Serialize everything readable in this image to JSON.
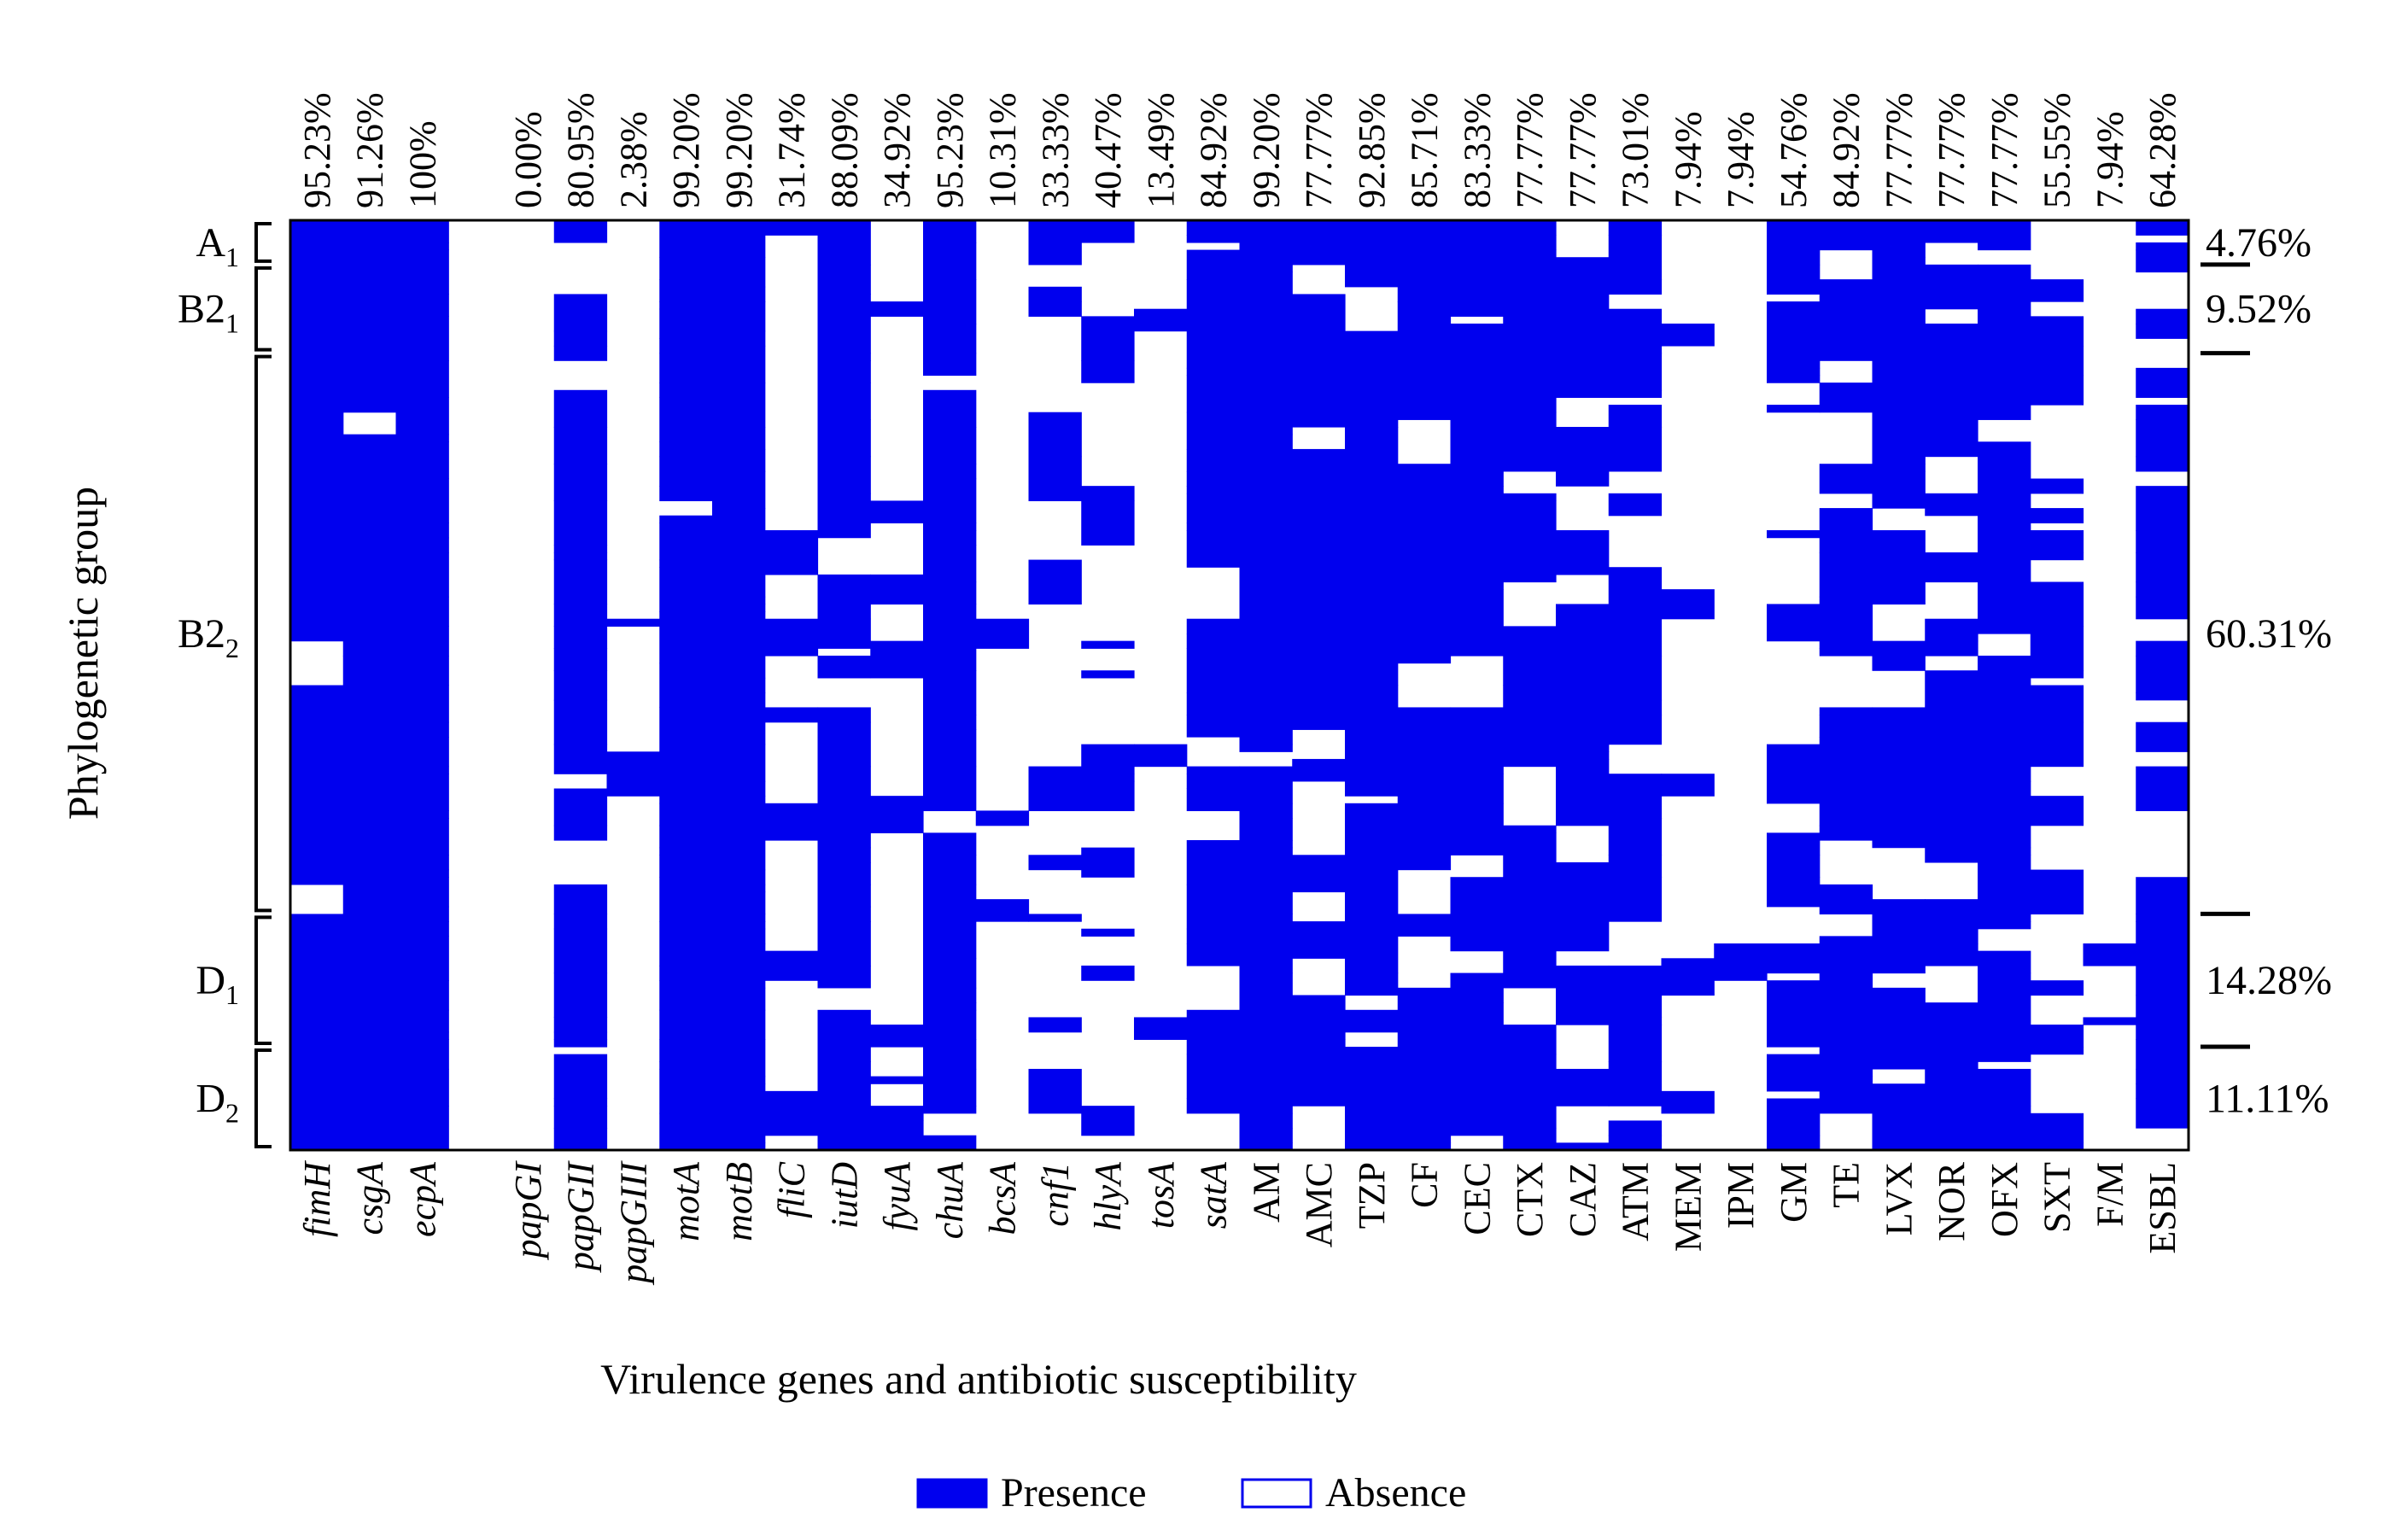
{
  "chart_data": {
    "type": "heatmap",
    "title": "",
    "xlabel": "Virulence genes and antibiotic susceptibility",
    "ylabel": "Phylogenetic group",
    "colors": {
      "presence": "#0000ee",
      "absence": "#ffffff",
      "text": "#000000"
    },
    "legend": {
      "position": "bottom-center",
      "items": [
        {
          "label": "Presence",
          "filled": true
        },
        {
          "label": "Absence",
          "filled": false
        }
      ]
    },
    "columns": [
      {
        "label": "fimH",
        "italic": true,
        "percent": "95.23%",
        "value": 95.23
      },
      {
        "label": "csgA",
        "italic": true,
        "percent": "91.26%",
        "value": 91.26
      },
      {
        "label": "ecpA",
        "italic": true,
        "percent": "100%",
        "value": 100
      },
      {
        "label": "",
        "italic": false,
        "percent": "",
        "value": null
      },
      {
        "label": "papGI",
        "italic": true,
        "percent": "0.00%",
        "value": 0
      },
      {
        "label": "papGII",
        "italic": true,
        "percent": "80.95%",
        "value": 80.95
      },
      {
        "label": "papGIII",
        "italic": true,
        "percent": "2.38%",
        "value": 2.38
      },
      {
        "label": "motA",
        "italic": true,
        "percent": "99.20%",
        "value": 99.2
      },
      {
        "label": "motB",
        "italic": true,
        "percent": "99.20%",
        "value": 99.2
      },
      {
        "label": "fliC",
        "italic": true,
        "percent": "31.74%",
        "value": 31.74
      },
      {
        "label": "iutD",
        "italic": true,
        "percent": "88.09%",
        "value": 88.09
      },
      {
        "label": "fyuA",
        "italic": true,
        "percent": "34.92%",
        "value": 34.92
      },
      {
        "label": "chuA",
        "italic": true,
        "percent": "95.23%",
        "value": 95.23
      },
      {
        "label": "bcsA",
        "italic": true,
        "percent": "10.31%",
        "value": 10.31
      },
      {
        "label": "cnf1",
        "italic": true,
        "percent": "33.33%",
        "value": 33.33
      },
      {
        "label": "hlyA",
        "italic": true,
        "percent": "40.47%",
        "value": 40.47
      },
      {
        "label": "tosA",
        "italic": true,
        "percent": "13.49%",
        "value": 13.49
      },
      {
        "label": "satA",
        "italic": true,
        "percent": "84.92%",
        "value": 84.92
      },
      {
        "label": "AM",
        "italic": false,
        "percent": "99.20%",
        "value": 99.2
      },
      {
        "label": "AMC",
        "italic": false,
        "percent": "77.77%",
        "value": 77.77
      },
      {
        "label": "TZP",
        "italic": false,
        "percent": "92.85%",
        "value": 92.85
      },
      {
        "label": "CF",
        "italic": false,
        "percent": "85.71%",
        "value": 85.71
      },
      {
        "label": "CEC",
        "italic": false,
        "percent": "83.33%",
        "value": 83.33
      },
      {
        "label": "CTX",
        "italic": false,
        "percent": "77.77%",
        "value": 77.77
      },
      {
        "label": "CAZ",
        "italic": false,
        "percent": "77.77%",
        "value": 77.77
      },
      {
        "label": "ATM",
        "italic": false,
        "percent": "73.01%",
        "value": 73.01
      },
      {
        "label": "MEM",
        "italic": false,
        "percent": "7.94%",
        "value": 7.94
      },
      {
        "label": "IPM",
        "italic": false,
        "percent": "7.94%",
        "value": 7.94
      },
      {
        "label": "GM",
        "italic": false,
        "percent": "54.76%",
        "value": 54.76
      },
      {
        "label": "TE",
        "italic": false,
        "percent": "84.92%",
        "value": 84.92
      },
      {
        "label": "LVX",
        "italic": false,
        "percent": "77.77%",
        "value": 77.77
      },
      {
        "label": "NOR",
        "italic": false,
        "percent": "77.77%",
        "value": 77.77
      },
      {
        "label": "OFX",
        "italic": false,
        "percent": "77.77%",
        "value": 77.77
      },
      {
        "label": "SXT",
        "italic": false,
        "percent": "55.55%",
        "value": 55.55
      },
      {
        "label": "F/M",
        "italic": false,
        "percent": "7.94%",
        "value": 7.94
      },
      {
        "label": "ESBL",
        "italic": false,
        "percent": "64.28%",
        "value": 64.28
      }
    ],
    "groups": [
      {
        "label": "A",
        "sub": "1",
        "percent": "4.76%",
        "value": 4.76
      },
      {
        "label": "B2",
        "sub": "1",
        "percent": "9.52%",
        "value": 9.52
      },
      {
        "label": "B2",
        "sub": "2",
        "percent": "60.31%",
        "value": 60.31
      },
      {
        "label": "D",
        "sub": "1",
        "percent": "14.28%",
        "value": 14.28
      },
      {
        "label": "D",
        "sub": "2",
        "percent": "11.11%",
        "value": 11.11
      }
    ],
    "isolates": 126,
    "seed": 20240611
  }
}
